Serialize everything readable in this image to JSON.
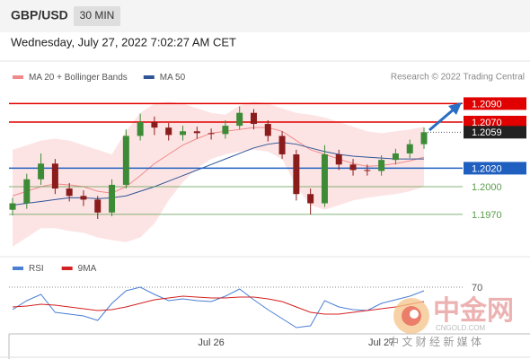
{
  "header": {
    "symbol": "GBP/USD",
    "timeframe": "30 MIN",
    "date": "Wednesday, July 27, 2022 7:02:27 AM CET",
    "credit": "Research © 2022 Trading Central"
  },
  "chart_data": [
    {
      "type": "candlestick",
      "legend": [
        {
          "name": "MA 20 + Bollinger Bands",
          "color": "#f08a8a"
        },
        {
          "name": "MA 50",
          "color": "#2f5597"
        }
      ],
      "categories": [
        null,
        null,
        null,
        null,
        null,
        null,
        null,
        null,
        null,
        null,
        null,
        null,
        null,
        null,
        "Jul 26",
        null,
        null,
        null,
        null,
        null,
        null,
        null,
        null,
        null,
        null,
        null,
        "Jul 27",
        null,
        null,
        null
      ],
      "open": [
        1.1975,
        1.1982,
        1.2008,
        1.2025,
        1.1998,
        1.199,
        1.1986,
        1.1972,
        1.2002,
        1.2055,
        1.207,
        1.2064,
        1.2056,
        1.206,
        1.2058,
        1.2057,
        1.2066,
        1.208,
        1.2068,
        1.2055,
        1.2035,
        1.1992,
        1.1982,
        1.2035,
        1.2024,
        1.2018,
        1.2017,
        1.2029,
        1.2036,
        1.2046
      ],
      "high": [
        1.1988,
        1.2014,
        1.2036,
        1.203,
        1.2004,
        1.1996,
        1.199,
        1.2008,
        1.2062,
        1.2079,
        1.2076,
        1.2069,
        1.2066,
        1.2065,
        1.2063,
        1.2072,
        1.2087,
        1.2084,
        1.2072,
        1.206,
        1.204,
        1.1998,
        1.2045,
        1.204,
        1.203,
        1.2024,
        1.2034,
        1.2041,
        1.2051,
        1.2064
      ],
      "low": [
        1.1969,
        1.1976,
        1.2002,
        1.1992,
        1.1984,
        1.1979,
        1.1965,
        1.1968,
        1.1998,
        1.205,
        1.2056,
        1.205,
        1.205,
        1.2052,
        1.2051,
        1.2052,
        1.2062,
        1.2062,
        1.2049,
        1.203,
        1.1985,
        1.197,
        1.1978,
        1.2018,
        1.2012,
        1.2012,
        1.2012,
        1.2024,
        1.2031,
        1.2041
      ],
      "close": [
        1.1982,
        1.2008,
        1.2025,
        1.1998,
        1.199,
        1.1986,
        1.1972,
        1.2002,
        1.2055,
        1.207,
        1.2064,
        1.2056,
        1.206,
        1.2058,
        1.2057,
        1.2066,
        1.208,
        1.2068,
        1.2055,
        1.2035,
        1.1992,
        1.1982,
        1.2035,
        1.2024,
        1.2018,
        1.2017,
        1.2029,
        1.2036,
        1.2046,
        1.2059
      ],
      "up_color": "#3d8b37",
      "down_color": "#8b1c1c",
      "ma20": [
        1.199,
        1.1995,
        1.2,
        1.2003,
        1.2002,
        1.2,
        1.1995,
        1.1993,
        1.2,
        1.2012,
        1.2025,
        1.2035,
        1.2045,
        1.2052,
        1.2058,
        1.206,
        1.2062,
        1.2064,
        1.2064,
        1.206,
        1.205,
        1.204,
        1.2035,
        1.203,
        1.2025,
        1.2022,
        1.2023,
        1.2025,
        1.2028,
        1.2032
      ],
      "upper": [
        1.204,
        1.2045,
        1.205,
        1.2052,
        1.205,
        1.2045,
        1.204,
        1.2035,
        1.206,
        1.208,
        1.209,
        1.2092,
        1.209,
        1.2085,
        1.208,
        1.2078,
        1.2088,
        1.2092,
        1.209,
        1.2085,
        1.208,
        1.2078,
        1.2075,
        1.207,
        1.2065,
        1.206,
        1.2058,
        1.206,
        1.2062,
        1.2065
      ],
      "lower": [
        1.1935,
        1.1945,
        1.1955,
        1.1955,
        1.1952,
        1.195,
        1.1945,
        1.1942,
        1.194,
        1.1945,
        1.196,
        1.1985,
        1.2005,
        1.202,
        1.203,
        1.2035,
        1.2038,
        1.204,
        1.2038,
        1.203,
        1.2,
        1.198,
        1.1975,
        1.198,
        1.1985,
        1.1988,
        1.199,
        1.1992,
        1.1995,
        1.2
      ],
      "ma50": [
        1.198,
        1.1982,
        1.1984,
        1.1986,
        1.1988,
        1.1988,
        1.1987,
        1.1988,
        1.199,
        1.1995,
        1.2,
        1.2006,
        1.2012,
        1.2018,
        1.2024,
        1.203,
        1.2036,
        1.2042,
        1.2046,
        1.2048,
        1.2046,
        1.2042,
        1.2038,
        1.2035,
        1.2033,
        1.2032,
        1.2031,
        1.203,
        1.203,
        1.203
      ],
      "ylim": [
        1.193,
        1.2105
      ],
      "levels": [
        {
          "value": 1.209,
          "label": "1.2090",
          "color": "#e00000",
          "style": "box"
        },
        {
          "value": 1.207,
          "label": "1.2070",
          "color": "#e00000",
          "style": "box"
        },
        {
          "value": 1.2059,
          "label": "1.2059",
          "color": "#222222",
          "style": "current"
        },
        {
          "value": 1.202,
          "label": "1.2020",
          "color": "#1f5fbf",
          "style": "box"
        },
        {
          "value": 1.2,
          "label": "1.2000",
          "color": "#5a9e4b",
          "style": "text"
        },
        {
          "value": 1.197,
          "label": "1.1970",
          "color": "#5a9e4b",
          "style": "text"
        }
      ]
    },
    {
      "type": "line",
      "series": [
        {
          "name": "RSI",
          "color": "#4a7fd4",
          "values": [
            45,
            55,
            62,
            42,
            40,
            38,
            33,
            52,
            66,
            70,
            62,
            55,
            57,
            55,
            54,
            60,
            68,
            56,
            45,
            35,
            25,
            27,
            55,
            48,
            45,
            44,
            52,
            56,
            60,
            66
          ]
        },
        {
          "name": "9MA",
          "color": "#d42020",
          "values": [
            48,
            49,
            51,
            50,
            48,
            46,
            44,
            45,
            48,
            52,
            56,
            58,
            60,
            59,
            58,
            58,
            59,
            59,
            57,
            54,
            48,
            42,
            40,
            40,
            42,
            44,
            46,
            48,
            51,
            54
          ]
        }
      ],
      "ylim": [
        20,
        80
      ],
      "yticks": [
        70
      ]
    }
  ],
  "watermark": {
    "name": "中金网",
    "site": "CNGOLD.COM",
    "slogan": "中 文 财 经 新 媒 体"
  }
}
